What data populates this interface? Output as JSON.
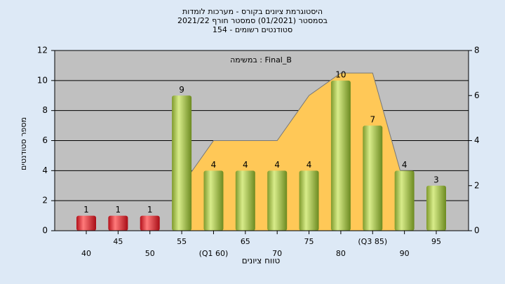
{
  "chart_data": {
    "type": "bar",
    "title": [
      "היסטוגרמת ציונים בקורס - מערכות לומדות",
      "בסמסטר  (01/2021)  סמסטר חורף 2021/22",
      "סטודנטים רשומים - 154"
    ],
    "subtitle": "במשימה : Final_B",
    "xlabel": "טווח ציונים",
    "ylabel": "מספר סטודנטים",
    "categories": [
      "40",
      "45",
      "50",
      "55",
      "(Q1 60)",
      "65",
      "70",
      "75",
      "80",
      "(Q3 85)",
      "90",
      "95"
    ],
    "values": [
      1,
      1,
      1,
      9,
      4,
      4,
      4,
      4,
      10,
      7,
      4,
      3
    ],
    "colors": [
      "red",
      "red",
      "red",
      "green",
      "green",
      "green",
      "green",
      "green",
      "green",
      "green",
      "green",
      "green"
    ],
    "area": {
      "axis": "y2",
      "color": "#ffc857",
      "values": [
        null,
        null,
        null,
        2,
        4,
        4,
        4,
        6,
        7,
        7,
        2,
        null
      ]
    },
    "ylim": [
      0,
      12
    ],
    "yticks": [
      0,
      2,
      4,
      6,
      8,
      10,
      12
    ],
    "y2lim": [
      0,
      8
    ],
    "y2ticks": [
      0,
      2,
      4,
      6,
      8
    ],
    "grid": true
  }
}
